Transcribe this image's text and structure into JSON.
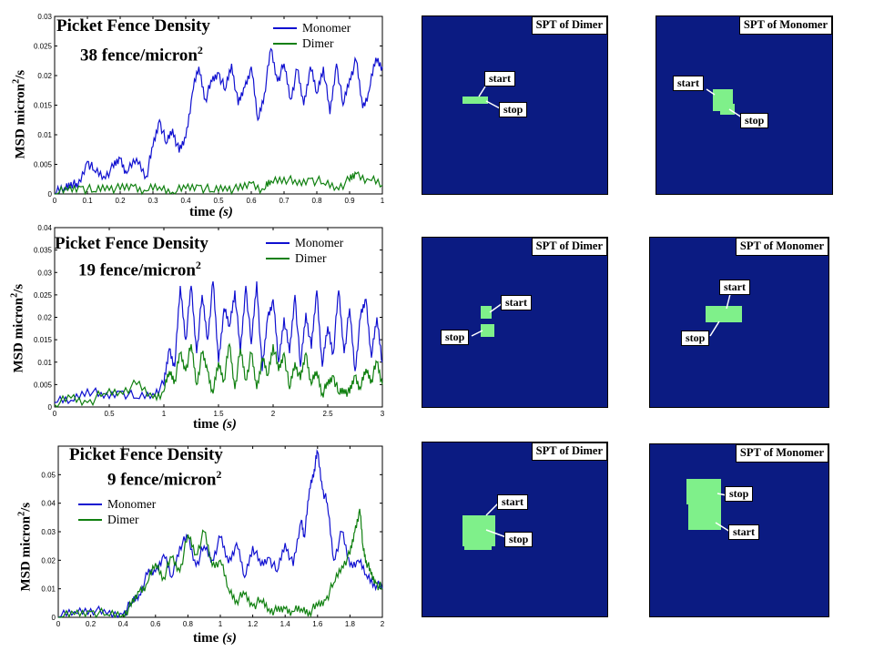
{
  "chart_data": [
    {
      "type": "line",
      "title": "Picket Fence Density",
      "subtitle": "38 fence/micron",
      "subtitle_sup": "2",
      "xlabel": "time",
      "xunit": "(s)",
      "ylabel": "MSD micron",
      "ylabel_sup": "2",
      "ylabel_tail": "/s",
      "xlim": [
        0,
        1
      ],
      "ylim": [
        0,
        0.03
      ],
      "xticks": [
        "0",
        "0.1",
        "0.2",
        "0.3",
        "0.4",
        "0.5",
        "0.6",
        "0.7",
        "0.8",
        "0.9",
        "1"
      ],
      "yticks": [
        "0",
        "0.005",
        "0.01",
        "0.015",
        "0.02",
        "0.025",
        "0.03"
      ],
      "legend_position": "top-right",
      "series": [
        {
          "name": "Monomer",
          "color": "#1010d0",
          "x": [
            0,
            0.03,
            0.05,
            0.07,
            0.1,
            0.12,
            0.15,
            0.18,
            0.2,
            0.22,
            0.25,
            0.28,
            0.3,
            0.32,
            0.34,
            0.36,
            0.38,
            0.4,
            0.42,
            0.44,
            0.46,
            0.48,
            0.5,
            0.52,
            0.54,
            0.56,
            0.58,
            0.6,
            0.62,
            0.64,
            0.66,
            0.68,
            0.7,
            0.72,
            0.74,
            0.76,
            0.78,
            0.8,
            0.82,
            0.84,
            0.86,
            0.88,
            0.9,
            0.92,
            0.94,
            0.96,
            0.98,
            1.0
          ],
          "y": [
            0,
            0.001,
            0.002,
            0.001,
            0.0055,
            0.004,
            0.003,
            0.0045,
            0.006,
            0.0035,
            0.006,
            0.003,
            0.008,
            0.0125,
            0.0085,
            0.011,
            0.007,
            0.0095,
            0.017,
            0.0215,
            0.016,
            0.019,
            0.0205,
            0.0175,
            0.022,
            0.015,
            0.018,
            0.0215,
            0.0125,
            0.017,
            0.0245,
            0.019,
            0.022,
            0.016,
            0.021,
            0.015,
            0.0215,
            0.017,
            0.0215,
            0.0135,
            0.022,
            0.015,
            0.0195,
            0.0225,
            0.0145,
            0.0175,
            0.023,
            0.0215
          ]
        },
        {
          "name": "Dimer",
          "color": "#108010",
          "x": [
            0,
            0.04,
            0.08,
            0.12,
            0.16,
            0.2,
            0.24,
            0.28,
            0.32,
            0.36,
            0.4,
            0.44,
            0.48,
            0.52,
            0.56,
            0.6,
            0.64,
            0.66,
            0.7,
            0.74,
            0.78,
            0.82,
            0.86,
            0.9,
            0.92,
            0.96,
            1.0
          ],
          "y": [
            0,
            0.0006,
            0.0012,
            0.0004,
            0.0014,
            0.0007,
            0.0013,
            0.0005,
            0.0012,
            0.0003,
            0.0009,
            0.0014,
            0.0004,
            0.0013,
            0.0006,
            0.0018,
            0.0007,
            0.0022,
            0.0028,
            0.0015,
            0.0026,
            0.0018,
            0.0012,
            0.0022,
            0.0034,
            0.0024,
            0.0015
          ]
        }
      ]
    },
    {
      "type": "line",
      "title": "Picket Fence Density",
      "subtitle": "19 fence/micron",
      "subtitle_sup": "2",
      "xlabel": "time",
      "xunit": "(s)",
      "ylabel": "MSD micron",
      "ylabel_sup": "2",
      "ylabel_tail": "/s",
      "xlim": [
        0,
        3
      ],
      "ylim": [
        0,
        0.04
      ],
      "xticks": [
        "0",
        "0.5",
        "1",
        "1.5",
        "2",
        "2.5",
        "3"
      ],
      "yticks": [
        "0",
        "0.005",
        "0.01",
        "0.015",
        "0.02",
        "0.025",
        "0.03",
        "0.035",
        "0.04"
      ],
      "legend_position": "top-right",
      "series": [
        {
          "name": "Monomer",
          "color": "#1010d0",
          "x": [
            0,
            0.15,
            0.3,
            0.45,
            0.6,
            0.75,
            0.9,
            1.0,
            1.05,
            1.1,
            1.15,
            1.2,
            1.25,
            1.3,
            1.35,
            1.4,
            1.45,
            1.5,
            1.55,
            1.6,
            1.65,
            1.7,
            1.75,
            1.8,
            1.85,
            1.9,
            1.95,
            2.0,
            2.05,
            2.1,
            2.15,
            2.2,
            2.25,
            2.3,
            2.35,
            2.4,
            2.45,
            2.5,
            2.55,
            2.6,
            2.65,
            2.7,
            2.75,
            2.8,
            2.85,
            2.9,
            2.95,
            3.0
          ],
          "y": [
            0.001,
            0.0015,
            0.004,
            0.002,
            0.0035,
            0.002,
            0.003,
            0.005,
            0.013,
            0.009,
            0.027,
            0.015,
            0.027,
            0.012,
            0.025,
            0.015,
            0.028,
            0.01,
            0.022,
            0.018,
            0.026,
            0.012,
            0.027,
            0.014,
            0.028,
            0.008,
            0.02,
            0.024,
            0.01,
            0.02,
            0.012,
            0.025,
            0.009,
            0.021,
            0.013,
            0.026,
            0.009,
            0.018,
            0.012,
            0.026,
            0.012,
            0.022,
            0.008,
            0.02,
            0.024,
            0.011,
            0.02,
            0.01
          ]
        },
        {
          "name": "Dimer",
          "color": "#108010",
          "x": [
            0,
            0.15,
            0.3,
            0.45,
            0.6,
            0.75,
            0.9,
            1.0,
            1.05,
            1.1,
            1.15,
            1.2,
            1.25,
            1.3,
            1.35,
            1.4,
            1.45,
            1.5,
            1.55,
            1.6,
            1.65,
            1.7,
            1.75,
            1.8,
            1.85,
            1.9,
            1.95,
            2.0,
            2.05,
            2.1,
            2.15,
            2.2,
            2.25,
            2.3,
            2.35,
            2.4,
            2.45,
            2.5,
            2.55,
            2.6,
            2.65,
            2.7,
            2.75,
            2.8,
            2.85,
            2.9,
            2.95,
            3.0
          ],
          "y": [
            0.0005,
            0.002,
            0.001,
            0.003,
            0.0035,
            0.005,
            0.002,
            0.0035,
            0.008,
            0.006,
            0.012,
            0.008,
            0.014,
            0.005,
            0.012,
            0.008,
            0.003,
            0.01,
            0.006,
            0.014,
            0.004,
            0.013,
            0.006,
            0.012,
            0.004,
            0.011,
            0.007,
            0.014,
            0.008,
            0.012,
            0.004,
            0.01,
            0.006,
            0.012,
            0.005,
            0.008,
            0.003,
            0.005,
            0.007,
            0.003,
            0.004,
            0.003,
            0.007,
            0.004,
            0.0085,
            0.006,
            0.01,
            0.005
          ]
        }
      ]
    },
    {
      "type": "line",
      "title": "Picket Fence Density",
      "subtitle": "9 fence/micron",
      "subtitle_sup": "2",
      "xlabel": "time",
      "xunit": "(s)",
      "ylabel": "MSD micron",
      "ylabel_sup": "2",
      "ylabel_tail": "/s",
      "xlim": [
        0,
        2
      ],
      "ylim": [
        0,
        0.06
      ],
      "xticks": [
        "0",
        "0.2",
        "0.4",
        "0.6",
        "0.8",
        "1",
        "1.2",
        "1.4",
        "1.6",
        "1.8",
        "2"
      ],
      "yticks": [
        "0",
        "0.01",
        "0.02",
        "0.03",
        "0.04",
        "0.05"
      ],
      "ytick_top": "0.06",
      "legend_position": "left",
      "series": [
        {
          "name": "Monomer",
          "color": "#1010d0",
          "x": [
            0,
            0.1,
            0.2,
            0.3,
            0.4,
            0.45,
            0.5,
            0.55,
            0.6,
            0.65,
            0.7,
            0.75,
            0.8,
            0.85,
            0.9,
            0.95,
            1.0,
            1.05,
            1.1,
            1.15,
            1.2,
            1.25,
            1.3,
            1.35,
            1.4,
            1.45,
            1.5,
            1.52,
            1.55,
            1.58,
            1.6,
            1.63,
            1.66,
            1.7,
            1.75,
            1.8,
            1.85,
            1.9,
            1.95,
            2.0
          ],
          "y": [
            0,
            0.002,
            0.003,
            0.001,
            0.001,
            0.005,
            0.008,
            0.015,
            0.016,
            0.022,
            0.014,
            0.025,
            0.028,
            0.018,
            0.025,
            0.02,
            0.028,
            0.019,
            0.026,
            0.014,
            0.025,
            0.018,
            0.021,
            0.016,
            0.026,
            0.018,
            0.034,
            0.028,
            0.045,
            0.052,
            0.058,
            0.045,
            0.04,
            0.02,
            0.03,
            0.018,
            0.02,
            0.015,
            0.012,
            0.01
          ]
        },
        {
          "name": "Dimer",
          "color": "#108010",
          "x": [
            0,
            0.1,
            0.2,
            0.3,
            0.4,
            0.45,
            0.5,
            0.55,
            0.6,
            0.65,
            0.7,
            0.75,
            0.8,
            0.85,
            0.9,
            0.95,
            1.0,
            1.05,
            1.1,
            1.15,
            1.2,
            1.25,
            1.3,
            1.35,
            1.4,
            1.45,
            1.5,
            1.55,
            1.6,
            1.65,
            1.7,
            1.75,
            1.8,
            1.83,
            1.86,
            1.88,
            1.9,
            1.93,
            1.96,
            2.0
          ],
          "y": [
            0,
            0.001,
            0.002,
            0.001,
            0.001,
            0.004,
            0.009,
            0.012,
            0.019,
            0.014,
            0.021,
            0.016,
            0.029,
            0.022,
            0.03,
            0.018,
            0.02,
            0.01,
            0.006,
            0.008,
            0.004,
            0.006,
            0.003,
            0.002,
            0.003,
            0.002,
            0.003,
            0.002,
            0.004,
            0.006,
            0.012,
            0.018,
            0.022,
            0.03,
            0.038,
            0.025,
            0.02,
            0.015,
            0.012,
            0.01
          ]
        }
      ]
    }
  ],
  "spt_panels": [
    {
      "title": "SPT of Dimer",
      "start_label": "start",
      "stop_label": "stop"
    },
    {
      "title": "SPT of Monomer",
      "start_label": "start",
      "stop_label": "stop"
    },
    {
      "title": "SPT of Dimer",
      "start_label": "start",
      "stop_label": "stop"
    },
    {
      "title": "SPT of Monomer",
      "start_label": "start",
      "stop_label": "stop"
    },
    {
      "title": "SPT of Dimer",
      "start_label": "start",
      "stop_label": "stop"
    },
    {
      "title": "SPT of Monomer",
      "start_label": "start",
      "stop_label": "stop"
    }
  ],
  "colors": {
    "panel_bg": "#0b1b82",
    "trajectory": "#7ff08a",
    "monomer": "#1010d0",
    "dimer": "#108010"
  }
}
